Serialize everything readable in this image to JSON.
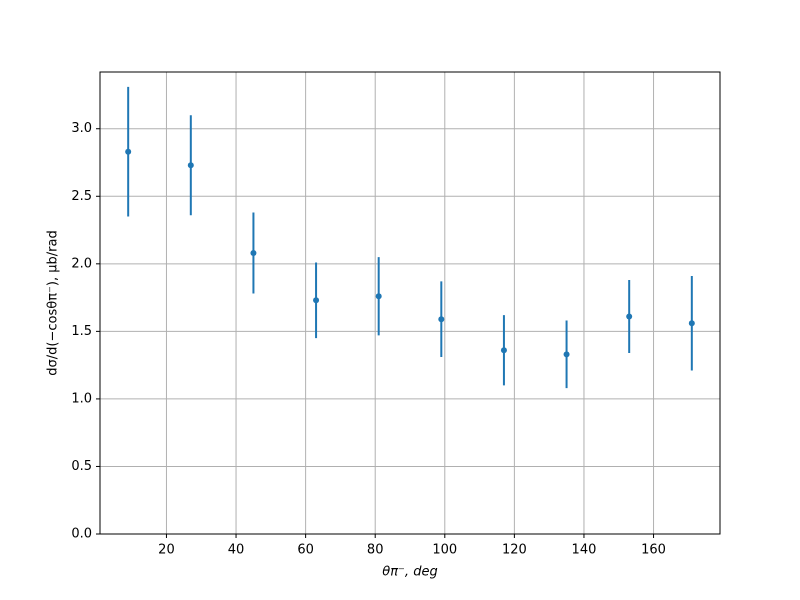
{
  "chart_data": {
    "type": "errorbar",
    "xlabel": "θπ⁻, deg",
    "ylabel": "dσ/d(−cosθπ⁻), μb/rad",
    "x": [
      9,
      27,
      45,
      63,
      81,
      99,
      117,
      135,
      153,
      171
    ],
    "values": [
      2.83,
      2.73,
      2.08,
      1.73,
      1.76,
      1.59,
      1.36,
      1.33,
      1.61,
      1.56
    ],
    "errors": [
      0.48,
      0.37,
      0.3,
      0.28,
      0.29,
      0.28,
      0.26,
      0.25,
      0.27,
      0.35
    ],
    "color": "#1f77b4",
    "xlim": [
      0.9,
      179.1
    ],
    "ylim": [
      0,
      3.42
    ],
    "xticks": [
      20,
      40,
      60,
      80,
      100,
      120,
      140,
      160
    ],
    "yticks": [
      {
        "value": 0,
        "label": "0.0"
      },
      0.5,
      {
        "value": 1,
        "label": "1.0"
      },
      1.5,
      {
        "value": 2,
        "label": "2.0"
      },
      2.5,
      {
        "value": 3,
        "label": "3.0"
      }
    ],
    "grid": true
  }
}
